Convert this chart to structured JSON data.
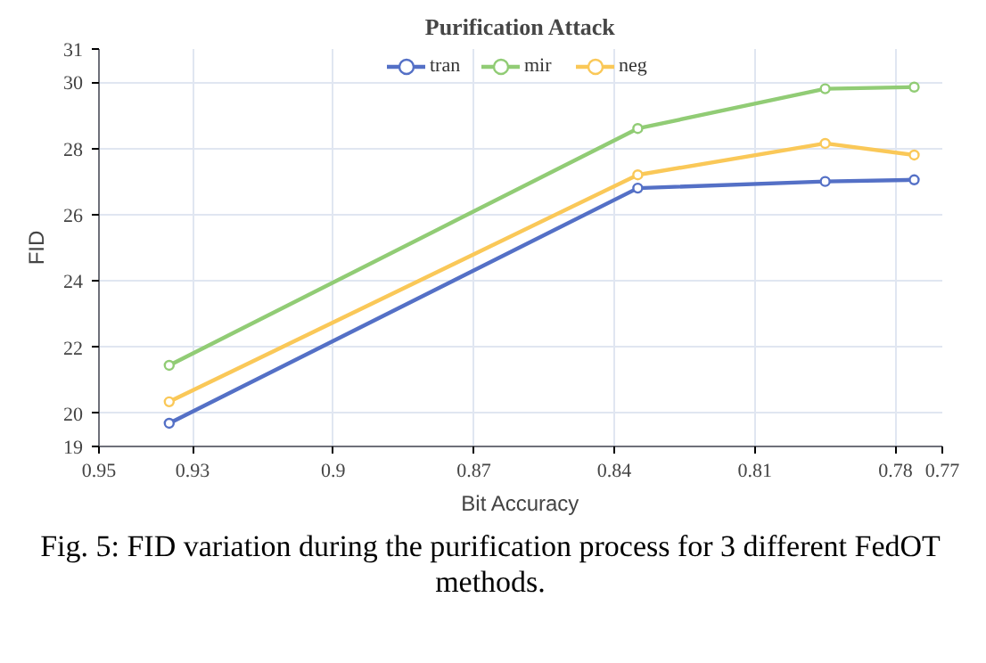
{
  "chart_data": {
    "type": "line",
    "title": "Purification Attack",
    "xlabel": "Bit Accuracy",
    "ylabel": "FID",
    "x": [
      0.935,
      0.835,
      0.795,
      0.776
    ],
    "series": [
      {
        "name": "tran",
        "color": "#5470c6",
        "values": [
          19.7,
          26.8,
          27.0,
          27.05
        ]
      },
      {
        "name": "mir",
        "color": "#91cc75",
        "values": [
          21.45,
          28.6,
          29.8,
          29.85
        ]
      },
      {
        "name": "neg",
        "color": "#fac858",
        "values": [
          20.35,
          27.2,
          28.15,
          27.8
        ]
      }
    ],
    "xlim": [
      0.95,
      0.77
    ],
    "xticks": [
      0.95,
      0.93,
      0.9,
      0.87,
      0.84,
      0.81,
      0.78,
      0.77
    ],
    "ylim": [
      19,
      31
    ],
    "yticks": [
      19,
      20,
      22,
      24,
      26,
      28,
      30,
      31
    ],
    "grid": true,
    "legend": "top",
    "marker": "circle",
    "line_style": "solid",
    "annotations": [
      "Fig. 5: FID variation during the purification process for 3 different FedOT methods."
    ]
  }
}
